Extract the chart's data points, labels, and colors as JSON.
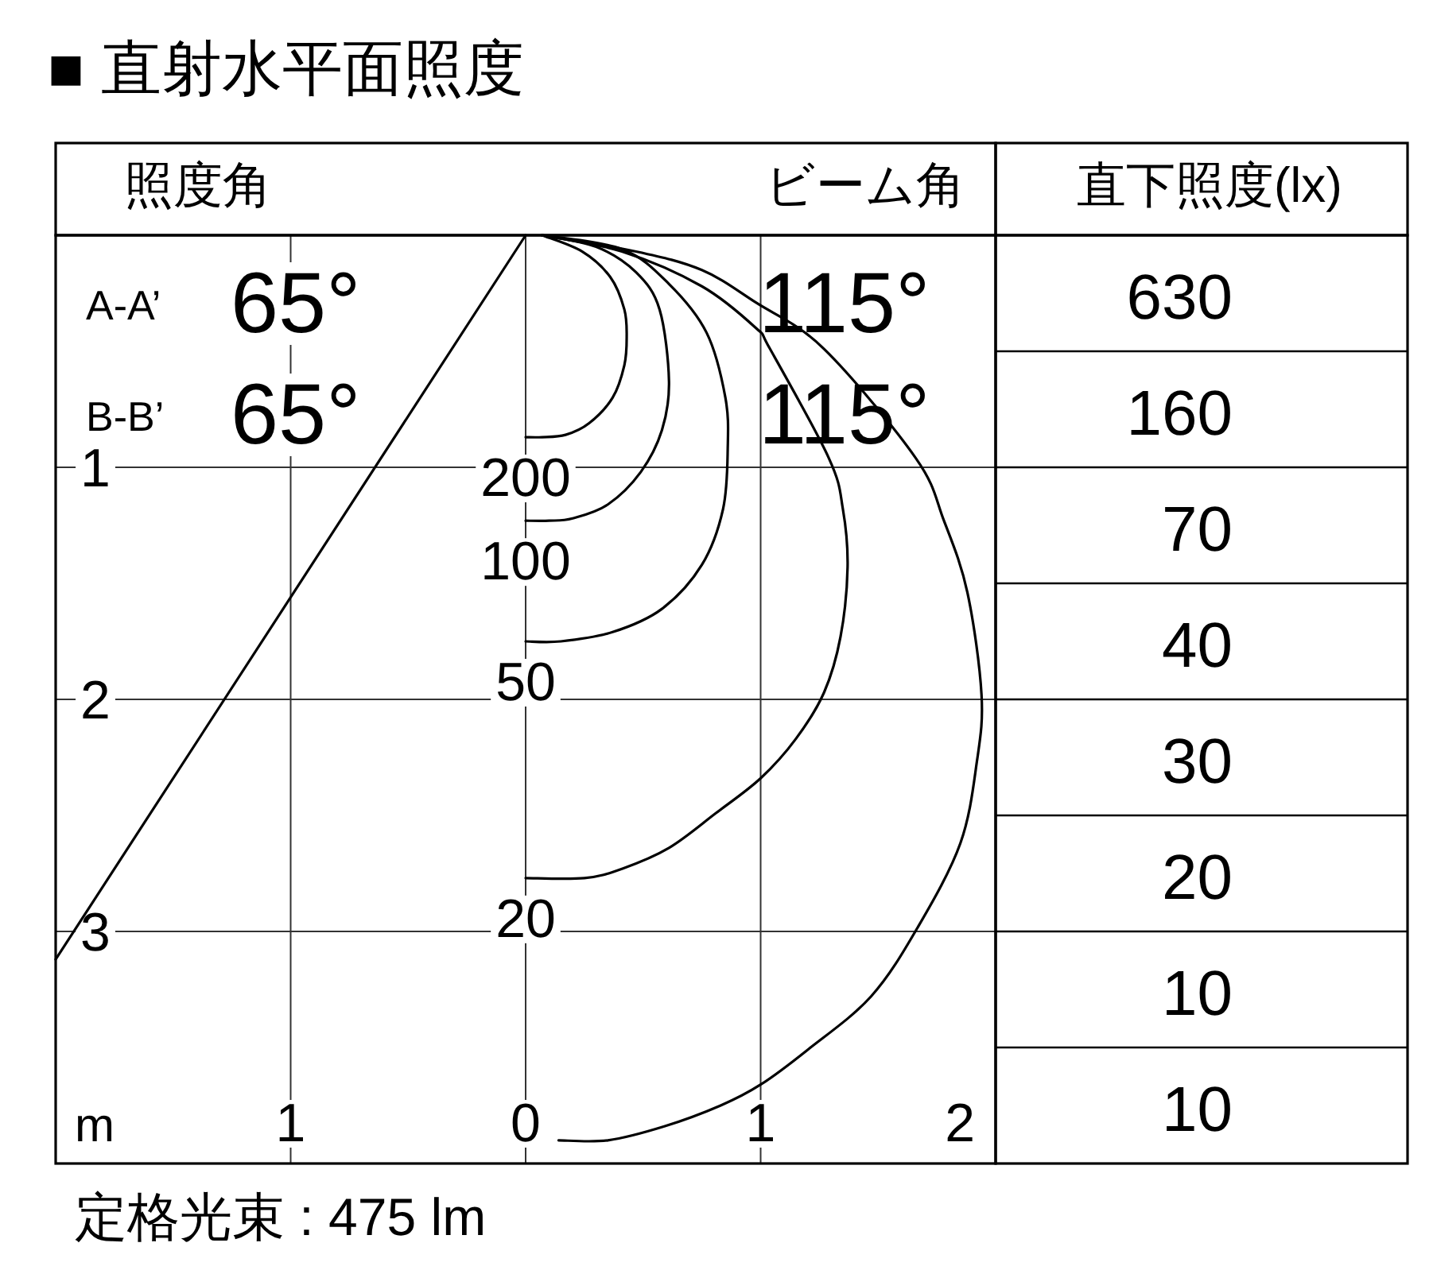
{
  "chart_data": [
    {
      "type": "line",
      "title": "■ 直射水平面照度",
      "xlabel": "m",
      "xlim": [
        -2,
        2
      ],
      "xticks": [
        {
          "value": -1,
          "label": "1"
        },
        0,
        1,
        2
      ],
      "ylim": [
        4,
        0
      ],
      "yticks": [
        1,
        2,
        3
      ],
      "grid": true,
      "series": [
        {
          "color": "#000000",
          "x": [
            0.07,
            0.24,
            0.36,
            0.42,
            0.43,
            0.42,
            0.37,
            0.27,
            0.17,
            0.07,
            0
          ],
          "values": [
            0,
            0.07,
            0.18,
            0.32,
            0.44,
            0.56,
            0.7,
            0.81,
            0.86,
            0.87,
            0.87
          ]
        },
        {
          "color": "#000000",
          "x": [
            0.07,
            0.3,
            0.47,
            0.57,
            0.61,
            0.58,
            0.49,
            0.35,
            0.2,
            0.1,
            0
          ],
          "values": [
            0,
            0.05,
            0.16,
            0.32,
            0.63,
            0.84,
            1.02,
            1.16,
            1.22,
            1.23,
            1.23
          ]
        },
        {
          "color": "#000000",
          "x": [
            0.07,
            0.41,
            0.61,
            0.77,
            0.85,
            0.86,
            0.84,
            0.75,
            0.58,
            0.37,
            0.15,
            0
          ],
          "values": [
            0,
            0.06,
            0.21,
            0.42,
            0.7,
            0.92,
            1.18,
            1.42,
            1.61,
            1.71,
            1.75,
            1.75
          ]
        },
        {
          "color": "#000000",
          "x": [
            0.07,
            0.41,
            0.75,
            0.98,
            1.04,
            1.29,
            1.35,
            1.37,
            1.34,
            1.27,
            1.15,
            1.0,
            0.81,
            0.61,
            0.41,
            0.25,
            0
          ],
          "values": [
            0,
            0.07,
            0.22,
            0.4,
            0.49,
            0.96,
            1.18,
            1.43,
            1.73,
            1.97,
            2.17,
            2.34,
            2.49,
            2.64,
            2.73,
            2.77,
            2.77
          ]
        },
        {
          "color": "#000000",
          "x": [
            0.07,
            0.47,
            0.75,
            0.98,
            1.27,
            1.66,
            1.78,
            1.88,
            1.94,
            1.92,
            1.85,
            1.67,
            1.47,
            1.2,
            1.0,
            0.83,
            0.59,
            0.35,
            0.14
          ],
          "values": [
            0,
            0.07,
            0.15,
            0.29,
            0.49,
            0.96,
            1.23,
            1.54,
            1.98,
            2.27,
            2.62,
            2.98,
            3.28,
            3.51,
            3.66,
            3.75,
            3.84,
            3.9,
            3.9
          ]
        },
        {
          "color": "#000000",
          "x": [
            0,
            -2
          ],
          "values": [
            0,
            3.12
          ]
        }
      ],
      "annotations": [
        "照度角",
        "ビーム角",
        "A-A’",
        "65°",
        "115°",
        "B-B’",
        "65°",
        "115°",
        "200",
        "100",
        "50",
        "20",
        "定格光束 : 475 lm"
      ]
    },
    {
      "type": "other",
      "title": "直下照度(lx)",
      "values": [
        630,
        160,
        70,
        40,
        30,
        20,
        10,
        10
      ],
      "data_labels": true
    }
  ]
}
